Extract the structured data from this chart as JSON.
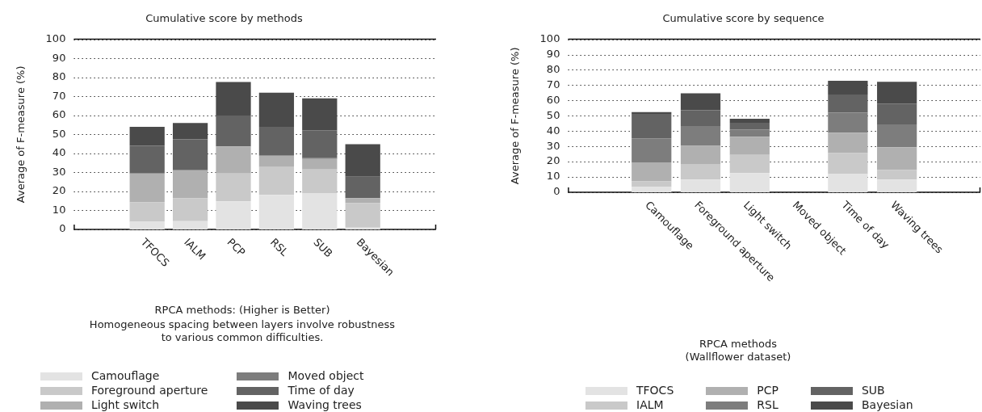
{
  "chart_data": [
    {
      "type": "bar",
      "title": "Cumulative score by methods",
      "xlabel": "RPCA methods: (Higher is Better)",
      "ylabel": "Average of F-measure (%)",
      "annotations": [
        "Homogeneous spacing between layers involve robustness\nto various common difficulties."
      ],
      "stacked": true,
      "grid": "y",
      "legend": "bottom",
      "ylim": [
        0,
        100
      ],
      "yticks": [
        0,
        10,
        20,
        30,
        40,
        50,
        60,
        70,
        80,
        90,
        100
      ],
      "categories": [
        "TFOCS",
        "IALM",
        "PCP",
        "RSL",
        "SUB",
        "Bayesian"
      ],
      "series": [
        {
          "name": "Camouflage",
          "color": "#e3e3e3",
          "values": [
            4,
            4.4,
            14.8,
            18.2,
            19.1,
            1
          ]
        },
        {
          "name": "Foreground aperture",
          "color": "#c9c9c9",
          "values": [
            10.3,
            12.1,
            14.6,
            14.6,
            12.4,
            12.9
          ]
        },
        {
          "name": "Light switch",
          "color": "#b0b0b0",
          "values": [
            15.1,
            14.6,
            14.2,
            6,
            5.6,
            2.6
          ]
        },
        {
          "name": "Moved object",
          "color": "#7d7d7d",
          "values": [
            0,
            0,
            0,
            0,
            0.4,
            0
          ]
        },
        {
          "name": "Time of day",
          "color": "#636363",
          "values": [
            14.6,
            16.3,
            16.3,
            15.1,
            14.6,
            11.2
          ]
        },
        {
          "name": "Waving trees",
          "color": "#4a4a4a",
          "values": [
            9.9,
            8.6,
            17.6,
            18,
            16.8,
            17.1
          ]
        }
      ]
    },
    {
      "type": "bar",
      "title": "Cumulative score by sequence",
      "xlabel": "RPCA methods\n(Wallflower dataset)",
      "ylabel": "Average of F-measure (%)",
      "stacked": true,
      "grid": "y",
      "legend": "bottom",
      "ylim": [
        0,
        100
      ],
      "yticks": [
        0,
        10,
        20,
        30,
        40,
        50,
        60,
        70,
        80,
        90,
        100
      ],
      "categories": [
        "Camouflage",
        "Foreground aperture",
        "Light switch",
        "Moved object",
        "Time of day",
        "Waving trees"
      ],
      "series": [
        {
          "name": "TFOCS",
          "color": "#e3e3e3",
          "values": [
            3.4,
            8.3,
            12.5,
            0,
            11.9,
            8.3
          ]
        },
        {
          "name": "IALM",
          "color": "#c9c9c9",
          "values": [
            3.7,
            10.2,
            11.9,
            0,
            13.7,
            6.4
          ]
        },
        {
          "name": "PCP",
          "color": "#b0b0b0",
          "values": [
            12.5,
            11.9,
            11.9,
            0,
            13.3,
            14.7
          ]
        },
        {
          "name": "RSL",
          "color": "#7d7d7d",
          "values": [
            15.7,
            12.9,
            4.8,
            0,
            13.1,
            15
          ]
        },
        {
          "name": "SUB",
          "color": "#636363",
          "values": [
            15.9,
            10.3,
            4.3,
            0,
            11.9,
            13.5
          ]
        },
        {
          "name": "Bayesian",
          "color": "#4a4a4a",
          "values": [
            1.2,
            11.1,
            2.6,
            0,
            8.9,
            14.3
          ]
        }
      ]
    }
  ]
}
